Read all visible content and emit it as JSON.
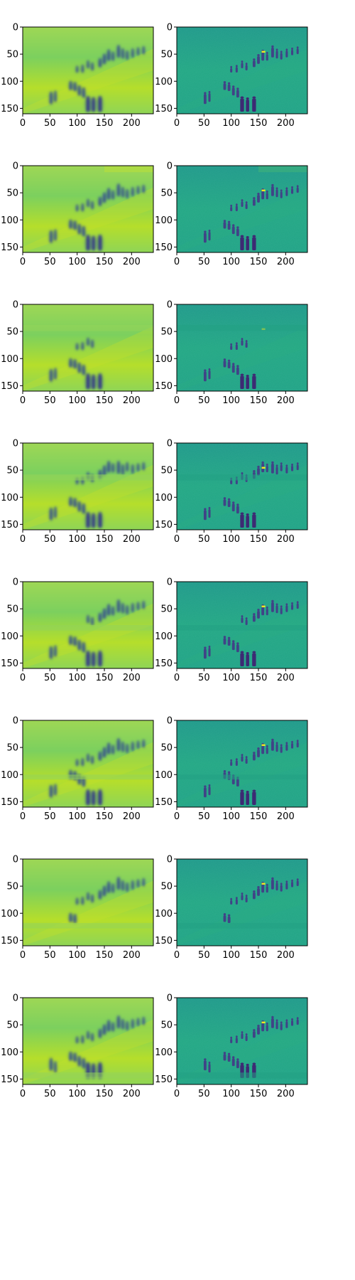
{
  "figure": {
    "rows": 8,
    "columns": 2,
    "panel_types": [
      "smooth-reconstruction",
      "detailed-reconstruction"
    ],
    "x_axis": {
      "ticks": [
        "0",
        "50",
        "100",
        "150",
        "200"
      ],
      "range": [
        0,
        240
      ]
    },
    "y_axis": {
      "ticks": [
        "0",
        "50",
        "100",
        "150"
      ],
      "range": [
        0,
        160
      ]
    },
    "colormap": "viridis",
    "colors": {
      "smooth_background": "#86cf5a",
      "detail_background": "#23a185",
      "figure_dark": "#3a2f7a",
      "figure_darkest": "#2b1f62",
      "highlight": "#f0e621"
    },
    "row_artifacts": [
      {
        "row": 1,
        "band": null
      },
      {
        "row": 2,
        "band": "top-right"
      },
      {
        "row": 3,
        "band": "upper"
      },
      {
        "row": 4,
        "band": "upper-middle"
      },
      {
        "row": 5,
        "band": "middle"
      },
      {
        "row": 6,
        "band": "lower-middle"
      },
      {
        "row": 7,
        "band": "lower"
      },
      {
        "row": 8,
        "band": "bottom"
      }
    ]
  }
}
